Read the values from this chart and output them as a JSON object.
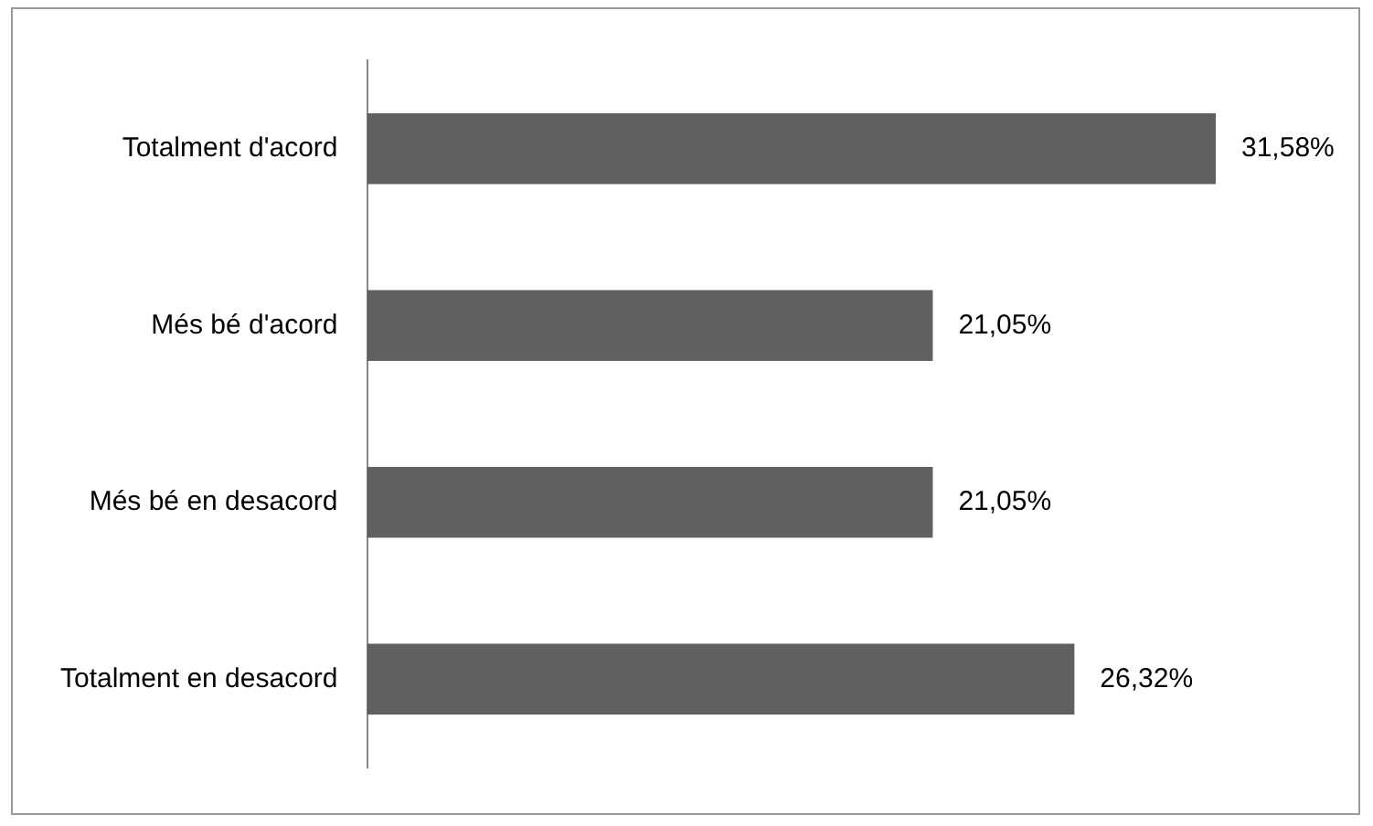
{
  "chart_data": {
    "type": "bar",
    "orientation": "horizontal",
    "categories": [
      "Totalment d'acord",
      "Més bé d'acord",
      "Més bé en desacord",
      "Totalment en desacord"
    ],
    "values": [
      31.58,
      21.05,
      21.05,
      26.32
    ],
    "color": "#606060",
    "value_labels": [
      "31,58%",
      "21,05%",
      "21,05%",
      "26,32%"
    ],
    "legend": false
  }
}
